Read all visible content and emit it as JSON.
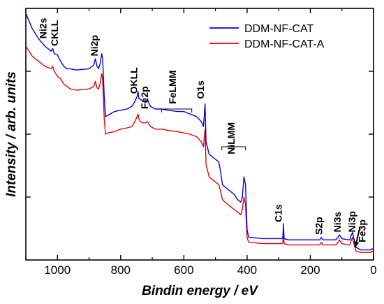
{
  "chart_data": {
    "type": "line",
    "xlabel": "Bindin energy / eV",
    "ylabel": "Intensity / arb. units",
    "xlim": [
      1100,
      0
    ],
    "x_reversed": true,
    "ylim": [
      0,
      100
    ],
    "x_ticks": [
      1000,
      800,
      600,
      400,
      200,
      0
    ],
    "y_ticks": [
      25,
      50,
      75
    ],
    "y_tick_labels_shown": false,
    "grid": false,
    "legend": {
      "position": "top-right",
      "entries": [
        "DDM-NF-CAT",
        "DDM-NF-CAT-A"
      ]
    },
    "series": [
      {
        "name": "DDM-NF-CAT",
        "color": "#0000ee",
        "points": [
          [
            1100,
            98
          ],
          [
            1080,
            92
          ],
          [
            1060,
            88
          ],
          [
            1040,
            85
          ],
          [
            1020,
            83
          ],
          [
            1015,
            84
          ],
          [
            1010,
            82
          ],
          [
            1000,
            81.5
          ],
          [
            990,
            79
          ],
          [
            980,
            77
          ],
          [
            970,
            76
          ],
          [
            960,
            76
          ],
          [
            940,
            75.5
          ],
          [
            900,
            76
          ],
          [
            885,
            77.5
          ],
          [
            880,
            80
          ],
          [
            875,
            77
          ],
          [
            870,
            76
          ],
          [
            865,
            78
          ],
          [
            860,
            82
          ],
          [
            857,
            80
          ],
          [
            852,
            65
          ],
          [
            848,
            57
          ],
          [
            840,
            57.5
          ],
          [
            820,
            59
          ],
          [
            800,
            59.5
          ],
          [
            780,
            60
          ],
          [
            765,
            61
          ],
          [
            755,
            63
          ],
          [
            748,
            65
          ],
          [
            745,
            67
          ],
          [
            742,
            64
          ],
          [
            738,
            64
          ],
          [
            730,
            63
          ],
          [
            722,
            63
          ],
          [
            715,
            64
          ],
          [
            710,
            62
          ],
          [
            705,
            61
          ],
          [
            690,
            60
          ],
          [
            670,
            60
          ],
          [
            650,
            59.5
          ],
          [
            620,
            59
          ],
          [
            600,
            59
          ],
          [
            580,
            58
          ],
          [
            560,
            57
          ],
          [
            545,
            55
          ],
          [
            538,
            53
          ],
          [
            533,
            62
          ],
          [
            530,
            47
          ],
          [
            520,
            42
          ],
          [
            500,
            40
          ],
          [
            490,
            39
          ],
          [
            485,
            36
          ],
          [
            478,
            30
          ],
          [
            470,
            29
          ],
          [
            460,
            28
          ],
          [
            450,
            27
          ],
          [
            440,
            26
          ],
          [
            430,
            24
          ],
          [
            420,
            23
          ],
          [
            415,
            25
          ],
          [
            410,
            33
          ],
          [
            405,
            30
          ],
          [
            400,
            12
          ],
          [
            395,
            9
          ],
          [
            390,
            9
          ],
          [
            350,
            8.5
          ],
          [
            300,
            8.5
          ],
          [
            290,
            8.5
          ],
          [
            287,
            9
          ],
          [
            285,
            14.5
          ],
          [
            283,
            8.5
          ],
          [
            270,
            8
          ],
          [
            250,
            8
          ],
          [
            200,
            8
          ],
          [
            170,
            8
          ],
          [
            165,
            9
          ],
          [
            160,
            8
          ],
          [
            120,
            8
          ],
          [
            112,
            9
          ],
          [
            108,
            10
          ],
          [
            100,
            8.5
          ],
          [
            80,
            8
          ],
          [
            75,
            8
          ],
          [
            70,
            10
          ],
          [
            66,
            11
          ],
          [
            64,
            9.5
          ],
          [
            60,
            7.5
          ],
          [
            55,
            5
          ],
          [
            40,
            4
          ],
          [
            20,
            4
          ],
          [
            10,
            4
          ],
          [
            5,
            4.5
          ],
          [
            0,
            4
          ]
        ]
      },
      {
        "name": "DDM-NF-CAT-A",
        "color": "#ee0000",
        "points": [
          [
            1100,
            85
          ],
          [
            1080,
            81
          ],
          [
            1060,
            79
          ],
          [
            1040,
            77
          ],
          [
            1020,
            76
          ],
          [
            1015,
            77
          ],
          [
            1010,
            75
          ],
          [
            1000,
            73
          ],
          [
            990,
            72
          ],
          [
            980,
            70
          ],
          [
            970,
            69
          ],
          [
            960,
            68
          ],
          [
            940,
            67.5
          ],
          [
            900,
            68
          ],
          [
            885,
            69
          ],
          [
            880,
            71
          ],
          [
            875,
            68.5
          ],
          [
            870,
            68
          ],
          [
            865,
            70
          ],
          [
            860,
            74
          ],
          [
            857,
            72
          ],
          [
            852,
            56
          ],
          [
            848,
            50
          ],
          [
            840,
            50.5
          ],
          [
            820,
            51
          ],
          [
            800,
            52
          ],
          [
            780,
            52.5
          ],
          [
            765,
            53
          ],
          [
            755,
            55
          ],
          [
            748,
            57
          ],
          [
            745,
            58
          ],
          [
            742,
            56
          ],
          [
            738,
            55
          ],
          [
            730,
            54.5
          ],
          [
            722,
            54.5
          ],
          [
            715,
            55
          ],
          [
            710,
            54
          ],
          [
            705,
            53
          ],
          [
            690,
            52
          ],
          [
            670,
            52
          ],
          [
            650,
            51.5
          ],
          [
            620,
            51
          ],
          [
            600,
            50.5
          ],
          [
            580,
            50
          ],
          [
            560,
            49
          ],
          [
            545,
            47
          ],
          [
            538,
            45
          ],
          [
            533,
            52
          ],
          [
            530,
            38
          ],
          [
            520,
            33
          ],
          [
            500,
            31
          ],
          [
            490,
            30
          ],
          [
            485,
            28
          ],
          [
            478,
            24
          ],
          [
            470,
            23
          ],
          [
            460,
            22
          ],
          [
            450,
            21
          ],
          [
            440,
            20
          ],
          [
            430,
            19
          ],
          [
            420,
            18
          ],
          [
            415,
            20
          ],
          [
            410,
            25
          ],
          [
            405,
            22
          ],
          [
            400,
            9
          ],
          [
            395,
            7
          ],
          [
            390,
            7
          ],
          [
            350,
            6.5
          ],
          [
            300,
            6.5
          ],
          [
            290,
            6.5
          ],
          [
            287,
            7
          ],
          [
            285,
            11
          ],
          [
            283,
            6.5
          ],
          [
            270,
            6
          ],
          [
            250,
            6
          ],
          [
            200,
            6
          ],
          [
            170,
            6
          ],
          [
            165,
            7
          ],
          [
            160,
            6
          ],
          [
            120,
            6
          ],
          [
            112,
            7
          ],
          [
            108,
            8
          ],
          [
            100,
            6.5
          ],
          [
            80,
            6
          ],
          [
            75,
            6
          ],
          [
            70,
            8
          ],
          [
            66,
            9
          ],
          [
            64,
            7.5
          ],
          [
            60,
            5.5
          ],
          [
            55,
            3.5
          ],
          [
            40,
            3
          ],
          [
            20,
            3
          ],
          [
            10,
            3
          ],
          [
            5,
            3.5
          ],
          [
            0,
            3
          ]
        ]
      }
    ],
    "annotations": [
      {
        "text": "Ni2s",
        "x": 1035,
        "y": 88,
        "rotate": -90
      },
      {
        "text": "CKLL",
        "x": 998,
        "y": 85,
        "rotate": -90
      },
      {
        "text": "Ni2p",
        "x": 873,
        "y": 81,
        "rotate": -90
      },
      {
        "text": "OKLL",
        "x": 748,
        "y": 66,
        "rotate": -90
      },
      {
        "text": "Fe2p",
        "x": 713,
        "y": 60,
        "rotate": -90
      },
      {
        "text": "FeLMM",
        "x": 625,
        "y": 62,
        "rotate": -90
      },
      {
        "text": "O1s",
        "x": 537,
        "y": 64,
        "rotate": -90
      },
      {
        "text": "NiLMM",
        "x": 440,
        "y": 42,
        "rotate": -90
      },
      {
        "text": "C1s",
        "x": 291,
        "y": 15,
        "rotate": -90
      },
      {
        "text": "S2p",
        "x": 162,
        "y": 10,
        "rotate": -90
      },
      {
        "text": "Ni3s",
        "x": 104,
        "y": 11,
        "rotate": -90
      },
      {
        "text": "Ni3p",
        "x": 57,
        "y": 11,
        "rotate": -90
      },
      {
        "text": "Fe3p",
        "x": 25,
        "y": 7,
        "rotate": -90
      }
    ],
    "brackets": [
      {
        "x1": 670,
        "x2": 575,
        "y": 60
      },
      {
        "x1": 480,
        "x2": 405,
        "y": 45
      }
    ],
    "arrow": {
      "from": [
        43,
        13
      ],
      "to": [
        58,
        5
      ]
    }
  }
}
